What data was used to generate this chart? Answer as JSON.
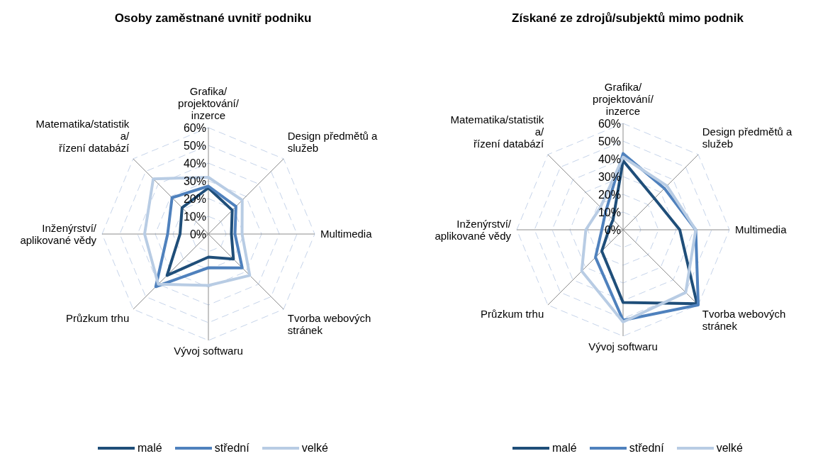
{
  "chart_data": [
    {
      "type": "radar",
      "title": "Osoby zaměstnané uvnitř podniku",
      "categories": [
        "Grafika/\nprojektování/\ninzerce",
        "Design předmětů a\nslužeb",
        "Multimedia",
        "Tvorba webových\nstránek",
        "Vývoj softwaru",
        "Průzkum trhu",
        "Inženýrství/\naplikované vědy",
        "Matematika/statistik\na/\nřízení databází"
      ],
      "series": [
        {
          "name": "malé",
          "color": "#1f4e79",
          "values": [
            26,
            19,
            13,
            20,
            13,
            33,
            16,
            21
          ]
        },
        {
          "name": "střední",
          "color": "#4f81bd",
          "values": [
            27,
            22,
            15,
            27,
            19,
            42,
            23,
            29
          ]
        },
        {
          "name": "velké",
          "color": "#b8cce4",
          "values": [
            32,
            27,
            19,
            33,
            29,
            40,
            36,
            44
          ]
        }
      ],
      "ylim": [
        0,
        60
      ],
      "yticks": [
        {
          "value": 0,
          "label": "0%"
        },
        {
          "value": 10,
          "label": "10%"
        },
        {
          "value": 20,
          "label": "20%"
        },
        {
          "value": 30,
          "label": "30%"
        },
        {
          "value": 40,
          "label": "40%"
        },
        {
          "value": 50,
          "label": "50%"
        },
        {
          "value": 60,
          "label": "60%"
        }
      ],
      "grid": true,
      "legend": "bottom",
      "marker": "none"
    },
    {
      "type": "radar",
      "title": "Získané ze zdrojů/subjektů mimo podnik",
      "categories": [
        "Grafika/\nprojektování/\ninzerce",
        "Design předmětů a\nslužeb",
        "Multimedia",
        "Tvorba webových\nstránek",
        "Vývoj softwaru",
        "Průzkum trhu",
        "Inženýrství/\naplikované vědy",
        "Matematika/statistik\na/\nřízení databází"
      ],
      "series": [
        {
          "name": "malé",
          "color": "#1f4e79",
          "values": [
            39,
            25,
            32,
            59,
            41,
            17,
            8,
            8
          ]
        },
        {
          "name": "střední",
          "color": "#4f81bd",
          "values": [
            43,
            33,
            41,
            60,
            51,
            22,
            12,
            14
          ]
        },
        {
          "name": "velké",
          "color": "#b8cce4",
          "values": [
            41,
            35,
            41,
            50,
            52,
            33,
            21,
            18
          ]
        }
      ],
      "ylim": [
        0,
        60
      ],
      "yticks": [
        {
          "value": 0,
          "label": "0%"
        },
        {
          "value": 10,
          "label": "10%"
        },
        {
          "value": 20,
          "label": "20%"
        },
        {
          "value": 30,
          "label": "30%"
        },
        {
          "value": 40,
          "label": "40%"
        },
        {
          "value": 50,
          "label": "50%"
        },
        {
          "value": 60,
          "label": "60%"
        }
      ],
      "grid": true,
      "legend": "bottom",
      "marker": "none"
    }
  ]
}
